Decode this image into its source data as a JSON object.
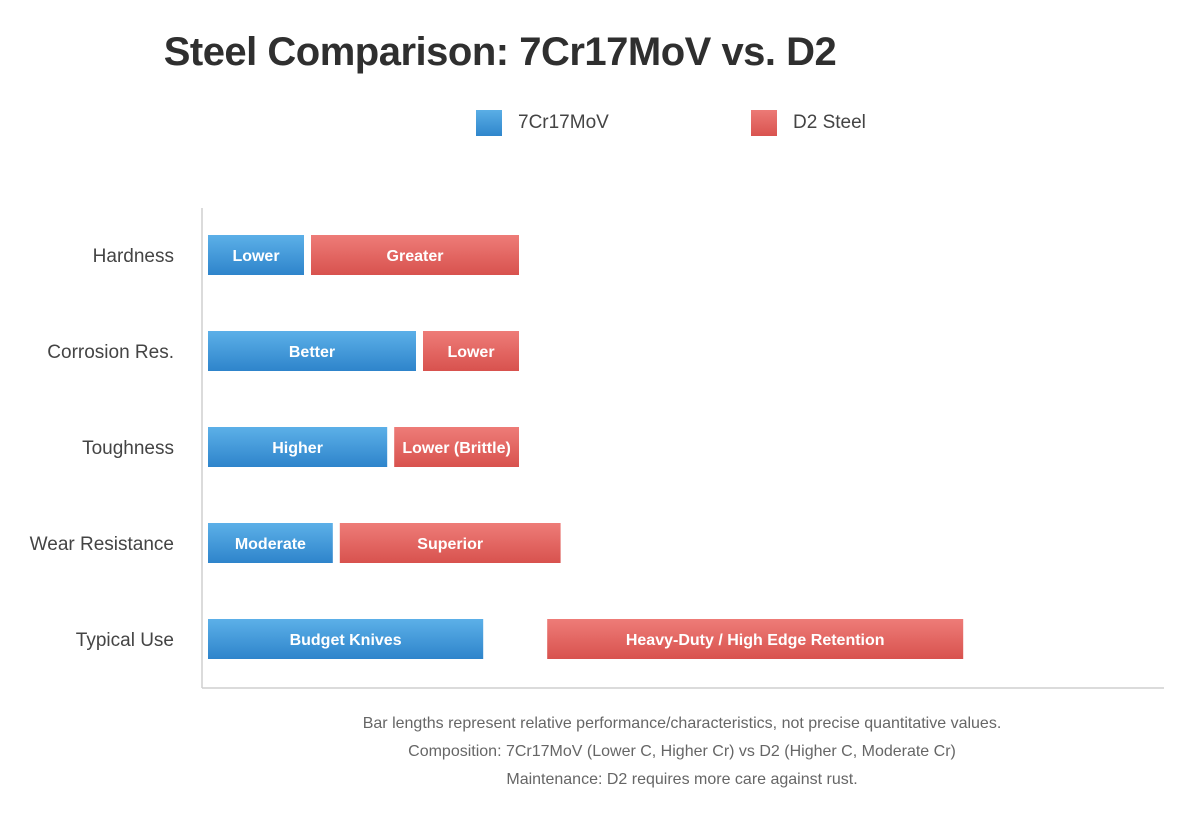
{
  "title": "Steel Comparison: 7Cr17MoV vs. D2",
  "legend": [
    {
      "label": "7Cr17MoV",
      "color": "#3b93d6"
    },
    {
      "label": "D2 Steel",
      "color": "#e05f5a"
    }
  ],
  "chart_data": {
    "type": "bar",
    "orientation": "horizontal",
    "stacked": "side-by-side",
    "categories": [
      "Hardness",
      "Corrosion Res.",
      "Toughness",
      "Wear Resistance",
      "Typical Use"
    ],
    "series": [
      {
        "name": "7Cr17MoV",
        "color": "#3b93d6",
        "values": [
          3,
          6.5,
          5.6,
          3.9,
          8.6
        ],
        "labels": [
          "Lower",
          "Better",
          "Higher",
          "Moderate",
          "Budget Knives"
        ]
      },
      {
        "name": "D2 Steel",
        "color": "#e05f5a",
        "values": [
          6.5,
          3,
          3.9,
          6.9,
          13
        ],
        "labels": [
          "Greater",
          "Lower",
          "Lower (Brittle)",
          "Superior",
          "Heavy-Duty / High Edge Retention"
        ]
      }
    ],
    "last_row_gap": 2,
    "xlim": [
      0,
      30
    ],
    "grid": false
  },
  "notes": [
    "Bar lengths represent relative performance/characteristics, not precise quantitative values.",
    "Composition: 7Cr17MoV (Lower C, Higher Cr) vs D2 (Higher C, Moderate Cr)",
    "Maintenance: D2 requires more care against rust."
  ]
}
